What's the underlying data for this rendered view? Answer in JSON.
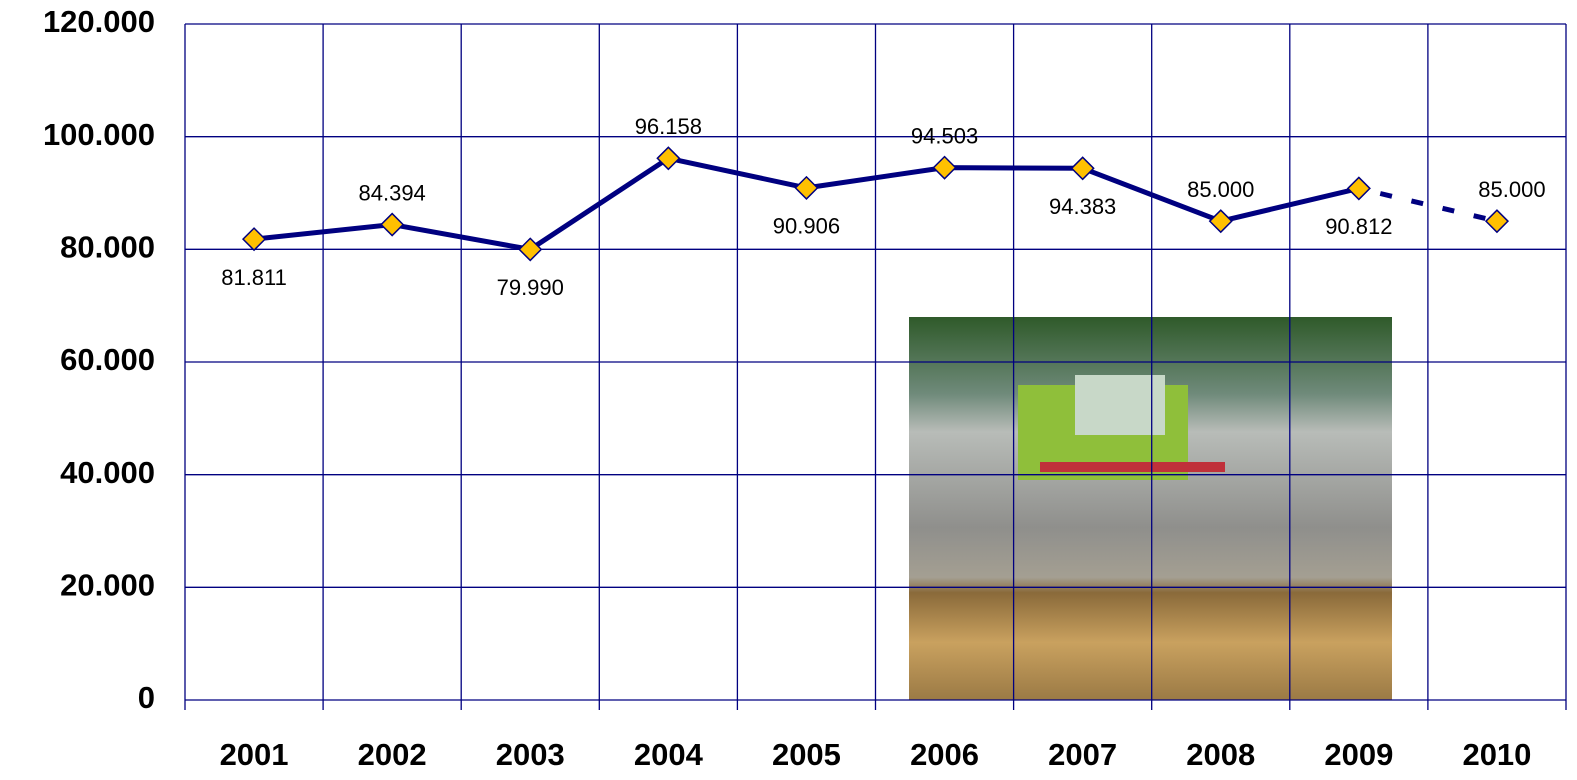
{
  "chart_data": {
    "type": "line",
    "categories": [
      "2001",
      "2002",
      "2003",
      "2004",
      "2005",
      "2006",
      "2007",
      "2008",
      "2009",
      "2010"
    ],
    "values": [
      81811,
      84394,
      79990,
      96158,
      90906,
      94503,
      94383,
      85000,
      90812,
      85000
    ],
    "value_labels": [
      "81.811",
      "84.394",
      "79.990",
      "96.158",
      "90.906",
      "94.503",
      "94.383",
      "85.000",
      "90.812",
      "85.000"
    ],
    "color": "#000080",
    "marker_color": "#ffc000",
    "dashed_from": 8,
    "ylim": [
      0,
      120000
    ],
    "yticks": [
      0,
      {
        "value": 20000,
        "label": "20.000"
      },
      {
        "value": 40000,
        "label": "40.000"
      },
      {
        "value": 60000,
        "label": "60.000"
      },
      {
        "value": 80000,
        "label": "80.000"
      },
      {
        "value": 100000,
        "label": "100.000"
      },
      {
        "value": 120000,
        "label": "120.000"
      }
    ],
    "grid": true
  }
}
